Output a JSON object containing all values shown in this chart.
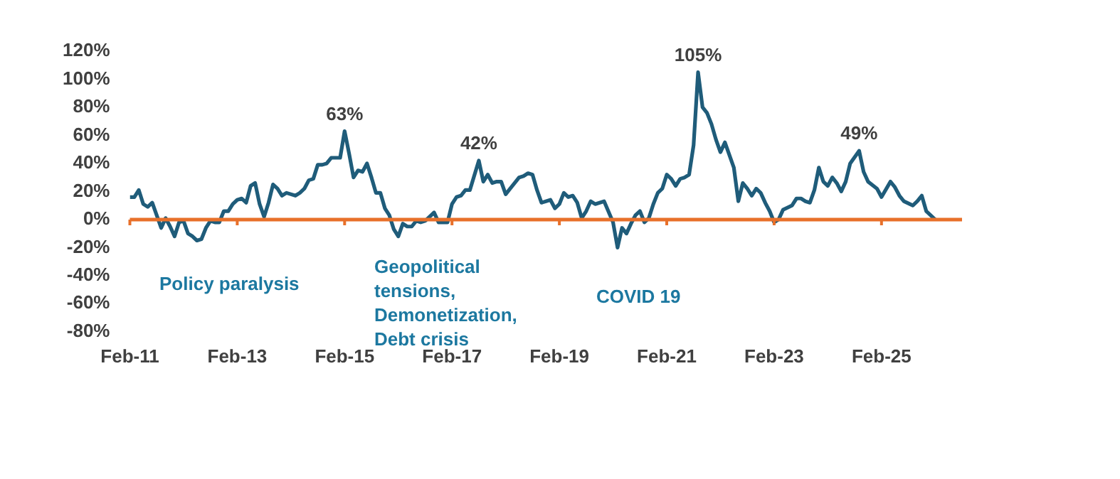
{
  "chart_data": {
    "type": "line",
    "x": [
      "2011-02",
      "2011-03",
      "2011-04",
      "2011-05",
      "2011-06",
      "2011-07",
      "2011-08",
      "2011-09",
      "2011-10",
      "2011-11",
      "2011-12",
      "2012-01",
      "2012-02",
      "2012-03",
      "2012-04",
      "2012-05",
      "2012-06",
      "2012-07",
      "2012-08",
      "2012-09",
      "2012-10",
      "2012-11",
      "2012-12",
      "2013-01",
      "2013-02",
      "2013-03",
      "2013-04",
      "2013-05",
      "2013-06",
      "2013-07",
      "2013-08",
      "2013-09",
      "2013-10",
      "2013-11",
      "2013-12",
      "2014-01",
      "2014-03",
      "2014-04",
      "2014-05",
      "2014-06",
      "2014-07",
      "2014-08",
      "2014-09",
      "2014-10",
      "2014-11",
      "2015-01",
      "2015-02",
      "2015-03",
      "2015-04",
      "2015-05",
      "2015-06",
      "2015-07",
      "2015-08",
      "2015-09",
      "2015-10",
      "2015-11",
      "2015-12",
      "2016-01",
      "2016-02",
      "2016-03",
      "2016-04",
      "2016-05",
      "2016-06",
      "2016-07",
      "2016-08",
      "2016-10",
      "2016-11",
      "2017-01",
      "2017-02",
      "2017-03",
      "2017-04",
      "2017-05",
      "2017-06",
      "2017-08",
      "2017-09",
      "2017-10",
      "2017-11",
      "2017-12",
      "2018-01",
      "2018-02",
      "2018-03",
      "2018-05",
      "2018-06",
      "2018-07",
      "2018-08",
      "2018-09",
      "2018-10",
      "2018-11",
      "2018-12",
      "2019-01",
      "2019-02",
      "2019-03",
      "2019-04",
      "2019-05",
      "2019-06",
      "2019-07",
      "2019-08",
      "2019-09",
      "2019-10",
      "2019-11",
      "2019-12",
      "2020-02",
      "2020-03",
      "2020-04",
      "2020-05",
      "2020-06",
      "2020-07",
      "2020-08",
      "2020-09",
      "2020-10",
      "2020-11",
      "2020-12",
      "2021-01",
      "2021-02",
      "2021-03",
      "2021-04",
      "2021-05",
      "2021-06",
      "2021-07",
      "2021-08",
      "2021-09",
      "2021-10",
      "2021-11",
      "2021-12",
      "2022-01",
      "2022-02",
      "2022-03",
      "2022-05",
      "2022-06",
      "2022-07",
      "2022-08",
      "2022-09",
      "2022-10",
      "2022-11",
      "2022-12",
      "2023-01",
      "2023-02",
      "2023-03",
      "2023-04",
      "2023-06",
      "2023-07",
      "2023-08",
      "2023-09",
      "2023-10",
      "2023-11",
      "2023-12",
      "2024-01",
      "2024-02",
      "2024-03",
      "2024-04",
      "2024-05",
      "2024-06",
      "2024-07",
      "2024-09",
      "2024-10",
      "2024-11",
      "2025-01",
      "2025-02",
      "2025-04",
      "2025-05",
      "2025-06",
      "2025-07",
      "2025-09",
      "2025-10",
      "2025-11",
      "2025-12",
      "2026-02"
    ],
    "series": [
      {
        "color": "#1f5c7a",
        "values": [
          16,
          16,
          21,
          11,
          9,
          12,
          3,
          -6,
          1,
          -5,
          -12,
          -2,
          -1,
          -10,
          -12,
          -15,
          -14,
          -6,
          -1,
          -2,
          -2,
          6,
          6,
          11,
          14,
          15,
          12,
          24,
          26,
          11,
          2,
          12,
          25,
          22,
          17,
          19,
          17,
          19,
          22,
          28,
          29,
          39,
          39,
          40,
          44,
          44,
          63,
          47,
          30,
          35,
          34,
          40,
          30,
          19,
          19,
          8,
          3,
          -7,
          -12,
          -3,
          -5,
          -5,
          -1,
          -2,
          -1,
          5,
          -2,
          -2,
          11,
          16,
          17,
          21,
          21,
          42,
          27,
          32,
          26,
          27,
          27,
          18,
          22,
          30,
          31,
          33,
          32,
          21,
          12,
          13,
          14,
          8,
          11,
          19,
          16,
          17,
          12,
          1,
          6,
          13,
          11,
          12,
          13,
          -2,
          -20,
          -6,
          -10,
          -3,
          3,
          6,
          -2,
          1,
          11,
          19,
          22,
          32,
          29,
          24,
          29,
          30,
          32,
          53,
          105,
          80,
          76,
          68,
          57,
          48,
          55,
          37,
          13,
          26,
          22,
          17,
          22,
          19,
          12,
          6,
          -2,
          0,
          7,
          10,
          15,
          15,
          13,
          12,
          21,
          37,
          27,
          24,
          30,
          26,
          20,
          27,
          40,
          49,
          34,
          27,
          22,
          16,
          27,
          23,
          17,
          13,
          10,
          13,
          17,
          6,
          0
        ]
      }
    ],
    "xlim": [
      "2011-02",
      "2026-08"
    ],
    "xticks": [
      {
        "value": "2011-02",
        "label": "Feb-11"
      },
      {
        "value": "2013-02",
        "label": "Feb-13"
      },
      {
        "value": "2015-02",
        "label": "Feb-15"
      },
      {
        "value": "2017-02",
        "label": "Feb-17"
      },
      {
        "value": "2019-02",
        "label": "Feb-19"
      },
      {
        "value": "2021-02",
        "label": "Feb-21"
      },
      {
        "value": "2023-02",
        "label": "Feb-23"
      },
      {
        "value": "2025-02",
        "label": "Feb-25"
      }
    ],
    "ylim": [
      -80,
      120
    ],
    "yticks": [
      {
        "value": -80,
        "label": "-80%"
      },
      {
        "value": -60,
        "label": "-60%"
      },
      {
        "value": -40,
        "label": "-40%"
      },
      {
        "value": -20,
        "label": "-20%"
      },
      {
        "value": 0,
        "label": "0%"
      },
      {
        "value": 20,
        "label": "20%"
      },
      {
        "value": 40,
        "label": "40%"
      },
      {
        "value": 60,
        "label": "60%"
      },
      {
        "value": 80,
        "label": "80%"
      },
      {
        "value": 100,
        "label": "100%"
      },
      {
        "value": 120,
        "label": "120%"
      }
    ],
    "ref_lines": [
      {
        "axis": "y",
        "value": 0,
        "color": "#e8702a"
      }
    ],
    "annotations": [
      {
        "text": "63%",
        "x": "2015-02",
        "y": 63
      },
      {
        "text": "42%",
        "x": "2017-08",
        "y": 42
      },
      {
        "text": "105%",
        "x": "2021-09",
        "y": 105
      },
      {
        "text": "49%",
        "x": "2024-09",
        "y": 49
      },
      "Policy paralysis",
      "Geopolitical\ntensions,\nDemonetization,\nDebt crisis",
      "COVID 19"
    ],
    "grid": false,
    "legend": false,
    "marker": "none",
    "line_style": "solid"
  }
}
